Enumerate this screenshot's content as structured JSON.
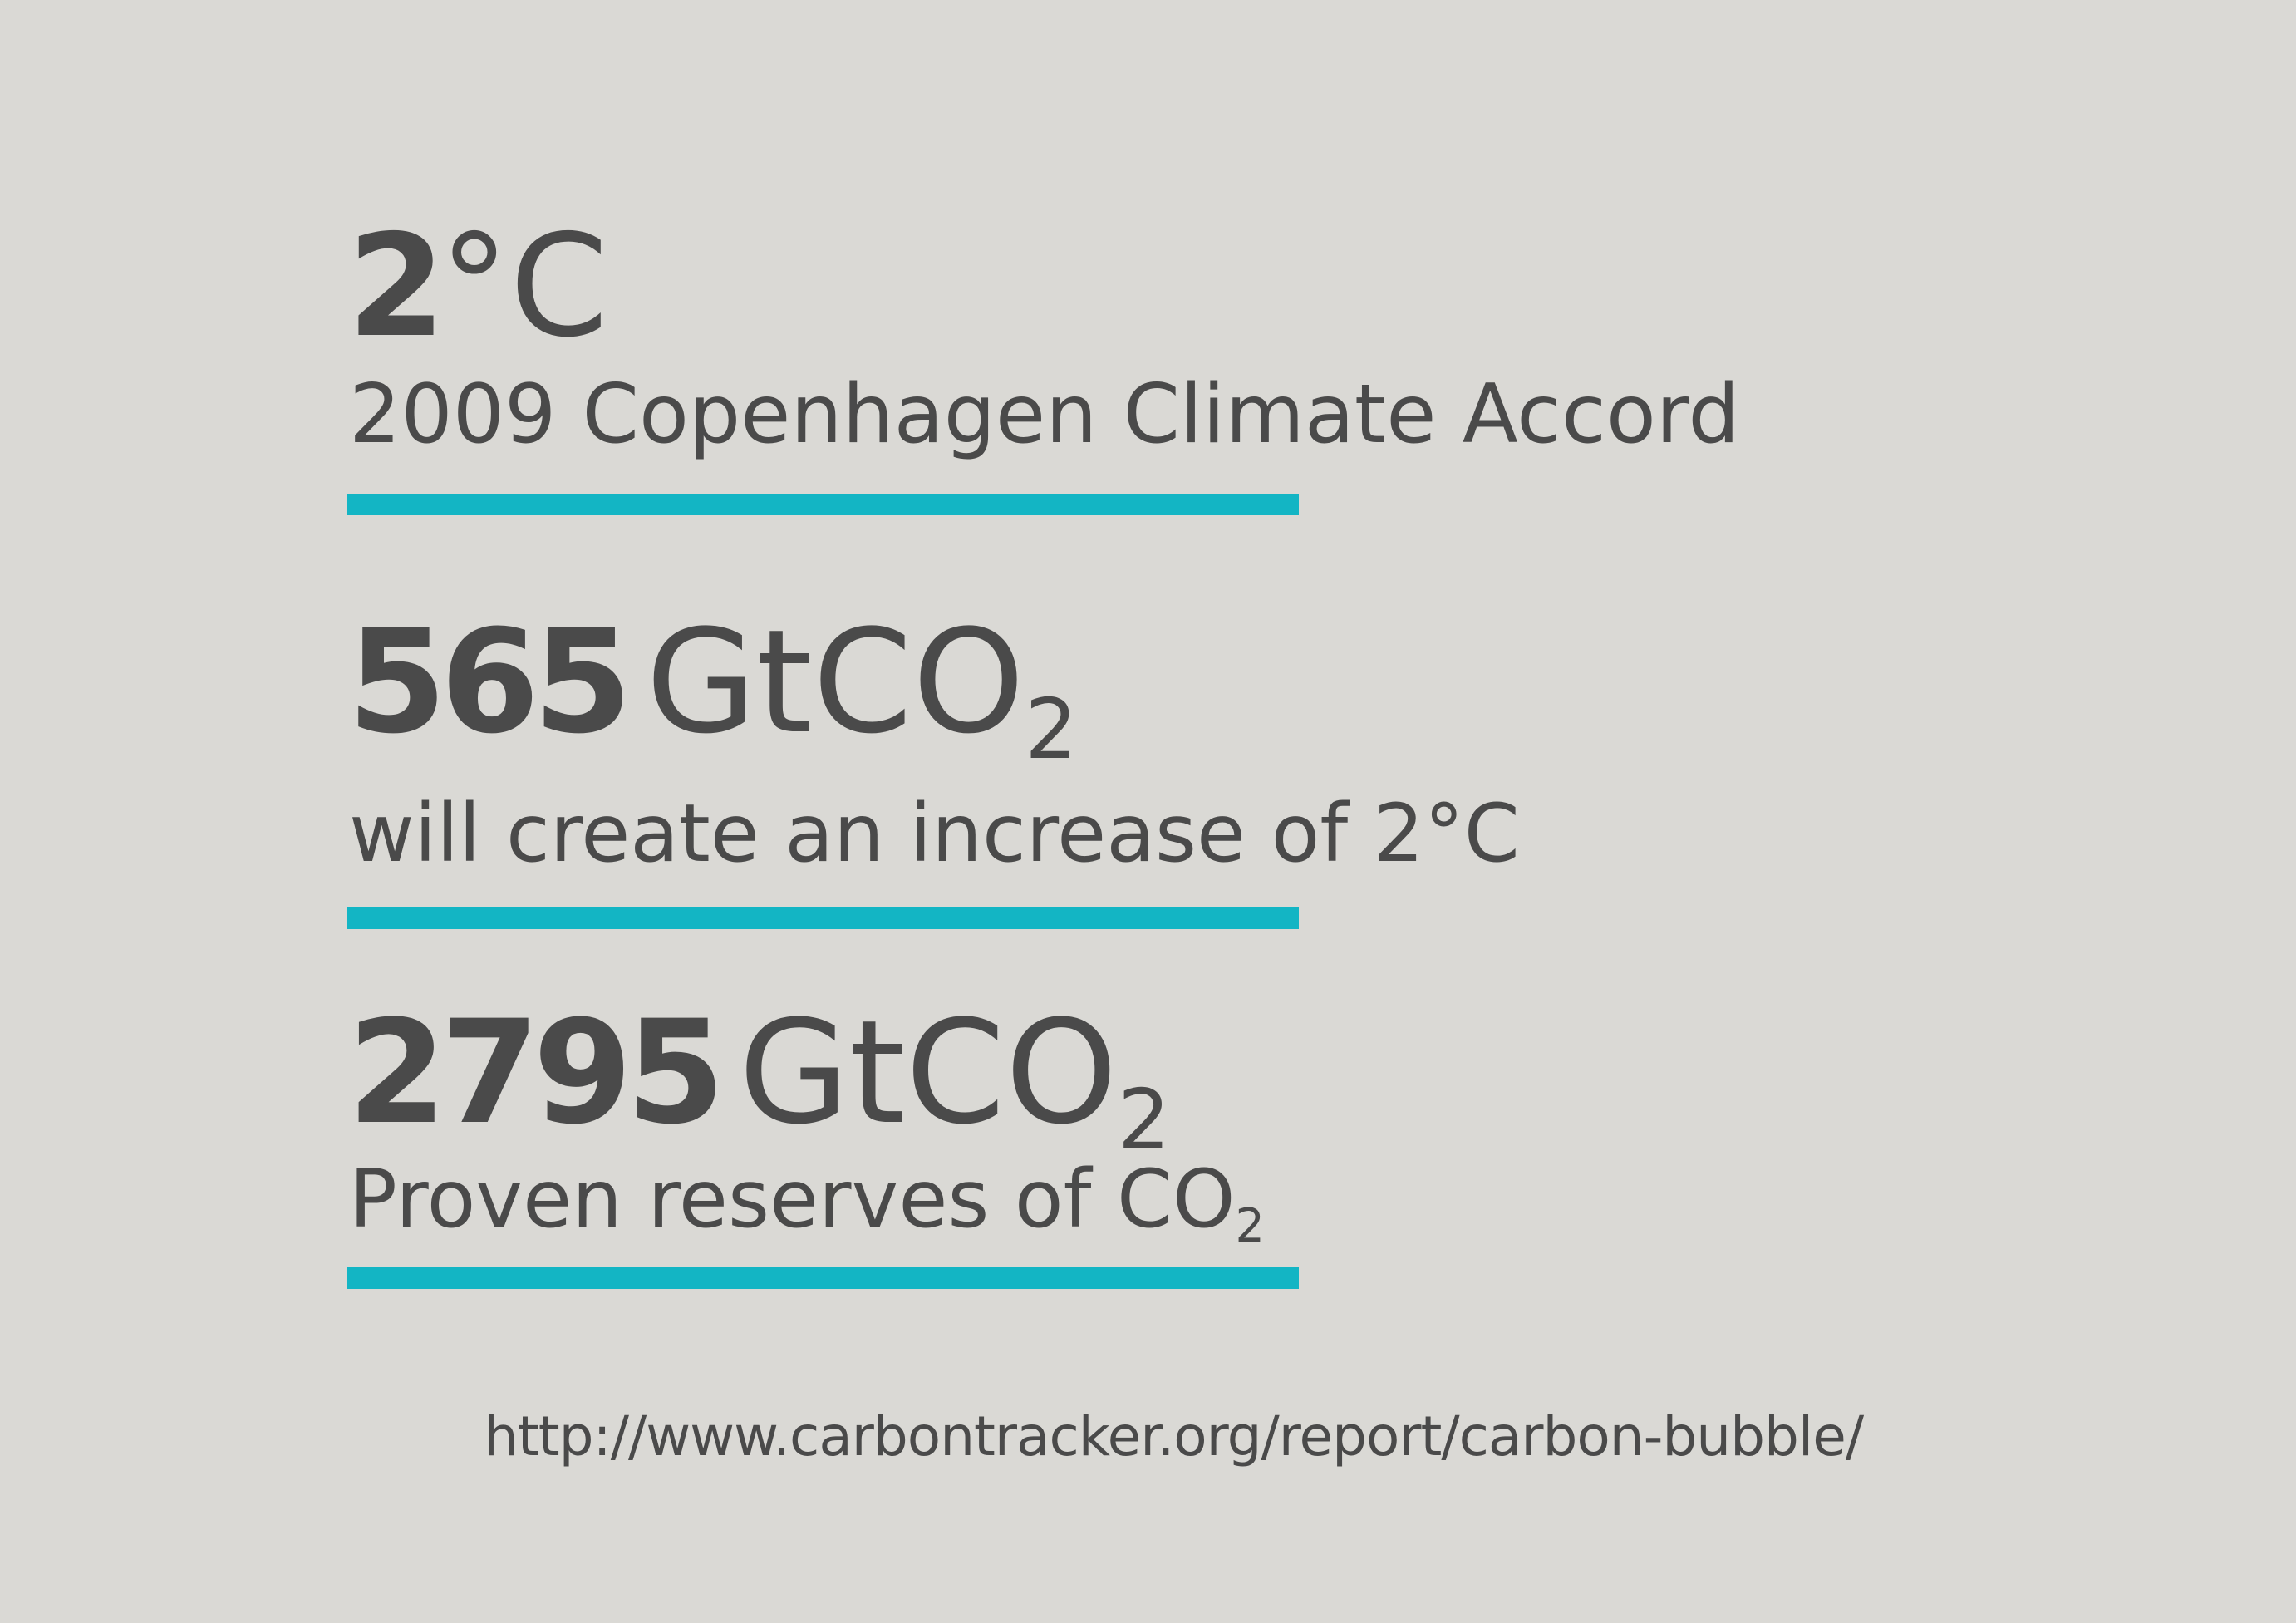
{
  "colors": {
    "background": "#dad9d5",
    "text": "#4a4a4a",
    "accent_rule": "#13b5c4"
  },
  "stats": [
    {
      "number": "2",
      "unit": "°C",
      "unit_subscript": "",
      "description": "2009 Copenhagen Climate Accord",
      "description_subscript": ""
    },
    {
      "number": "565",
      "unit": "GtCO",
      "unit_subscript": "2",
      "description": "will create an increase of 2°C",
      "description_subscript": ""
    },
    {
      "number": "2795",
      "unit": "GtCO",
      "unit_subscript": "2",
      "description": "Proven reserves of CO",
      "description_subscript": "2"
    }
  ],
  "source_url": "http://www.carbontracker.org/report/carbon-bubble/"
}
